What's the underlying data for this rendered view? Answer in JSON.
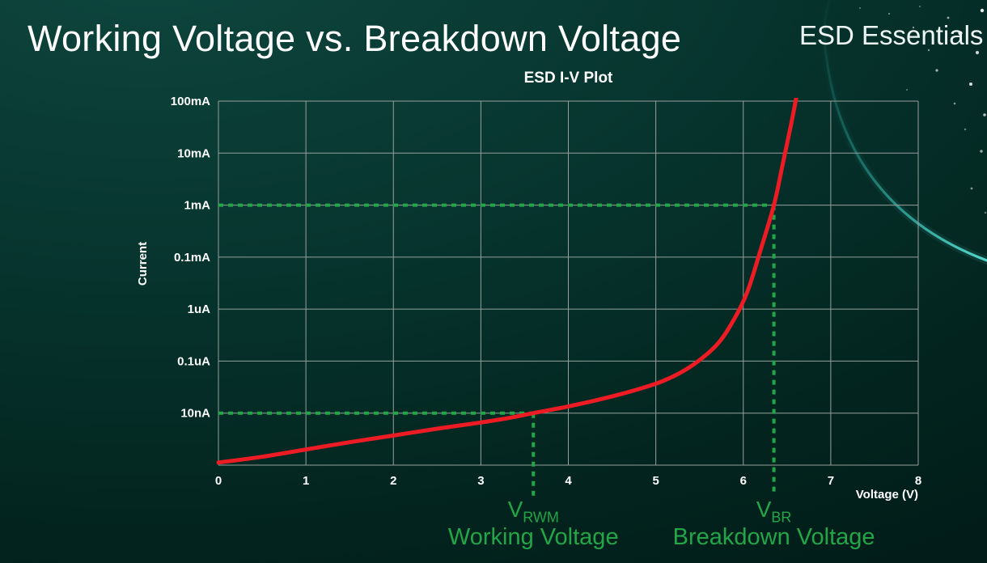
{
  "slide": {
    "title": "Working Voltage vs. Breakdown Voltage",
    "brand": "ESD Essentials"
  },
  "chart_data": {
    "type": "line",
    "title": "ESD I-V Plot",
    "xlabel": "Voltage (V)",
    "ylabel": "Current",
    "xlim": [
      0,
      8
    ],
    "x_ticks": [
      0,
      1,
      2,
      3,
      4,
      5,
      6,
      7,
      8
    ],
    "y_scale": "log",
    "y_levels": 7,
    "y_tick_labels": [
      "100mA",
      "10mA",
      "1mA",
      "0.1mA",
      "1uA",
      "0.1uA",
      "10nA"
    ],
    "grid": true,
    "grid_color": "#97a09b",
    "point_format": "[voltage_V, decade_level_from_bottom_axis]",
    "series": [
      {
        "name": "ESD I-V curve",
        "color": "#ed1c24",
        "points": [
          [
            0,
            0.05
          ],
          [
            0.5,
            0.16
          ],
          [
            1,
            0.3
          ],
          [
            1.5,
            0.44
          ],
          [
            2,
            0.57
          ],
          [
            2.5,
            0.7
          ],
          [
            3,
            0.82
          ],
          [
            3.3,
            0.9
          ],
          [
            3.6,
            1.0
          ],
          [
            4,
            1.13
          ],
          [
            4.4,
            1.28
          ],
          [
            4.8,
            1.46
          ],
          [
            5.1,
            1.63
          ],
          [
            5.4,
            1.9
          ],
          [
            5.7,
            2.32
          ],
          [
            5.9,
            2.82
          ],
          [
            6.05,
            3.35
          ],
          [
            6.2,
            4.15
          ],
          [
            6.35,
            5.0
          ],
          [
            6.45,
            5.78
          ],
          [
            6.55,
            6.58
          ],
          [
            6.61,
            7.1
          ]
        ]
      }
    ],
    "annotations": {
      "color": "#22a648",
      "vrwm": {
        "x": 3.6,
        "level": 1,
        "at_current": "10nA",
        "label_main": "V",
        "label_sub": "RWM",
        "caption": "Working Voltage"
      },
      "vbr": {
        "x": 6.35,
        "level": 5,
        "at_current": "1mA",
        "label_main": "V",
        "label_sub": "BR",
        "caption": "Breakdown Voltage"
      }
    },
    "legend": false
  },
  "colors": {
    "background_top": "#0e473f",
    "background_bottom": "#021d19",
    "text": "#ffffff",
    "curve_red": "#ed1c24",
    "annotation_green": "#22a648",
    "accent_swoosh": "#4adfd2"
  }
}
